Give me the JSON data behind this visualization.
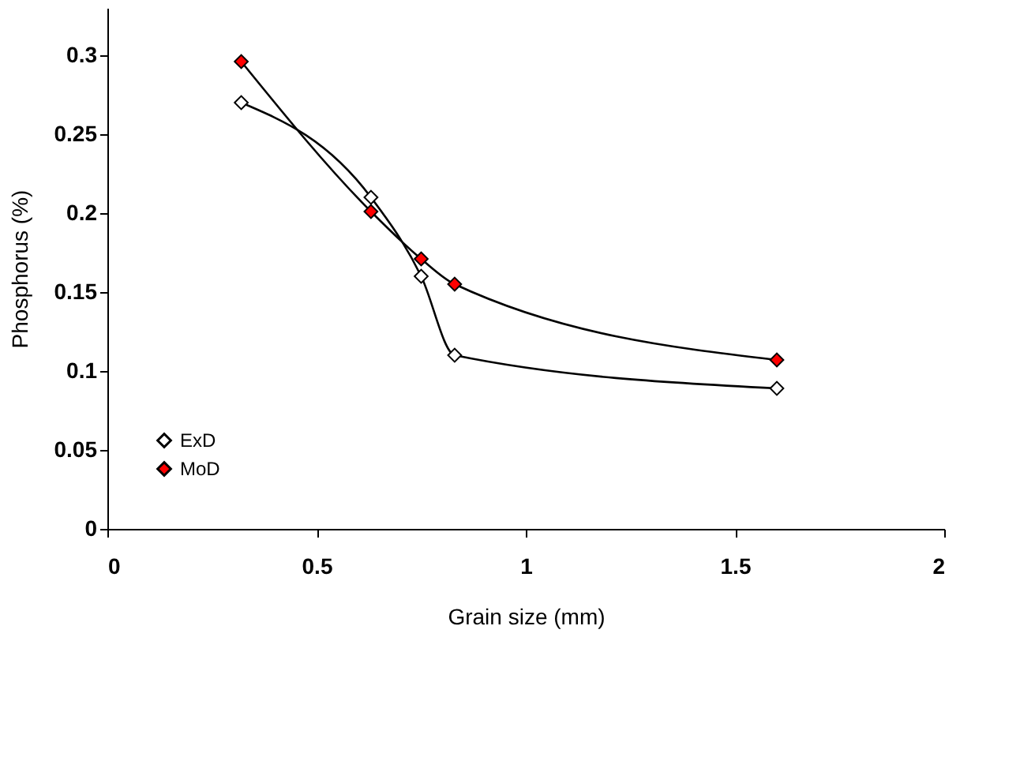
{
  "chart_data": {
    "type": "line",
    "xlabel": "Grain size (mm)",
    "ylabel": "Phosphorus (%)",
    "x": [
      0.32,
      0.63,
      0.75,
      0.83,
      1.6
    ],
    "series": [
      {
        "name": "ExD",
        "color": "#ffffff",
        "values": [
          0.27,
          0.21,
          0.16,
          0.11,
          0.089
        ]
      },
      {
        "name": "MoD",
        "color": "#ff0000",
        "values": [
          0.296,
          0.201,
          0.171,
          0.155,
          0.107
        ]
      }
    ],
    "xlim": [
      0,
      2
    ],
    "xticks": [
      0,
      0.5,
      1,
      1.5,
      2
    ],
    "ylim": [
      0,
      0.33
    ],
    "yticks": [
      0,
      0.05,
      0.1,
      0.15,
      0.2,
      0.25,
      0.3
    ],
    "grid": false,
    "legend": "bottom left",
    "marker": "diamond",
    "line_style": "solid"
  }
}
